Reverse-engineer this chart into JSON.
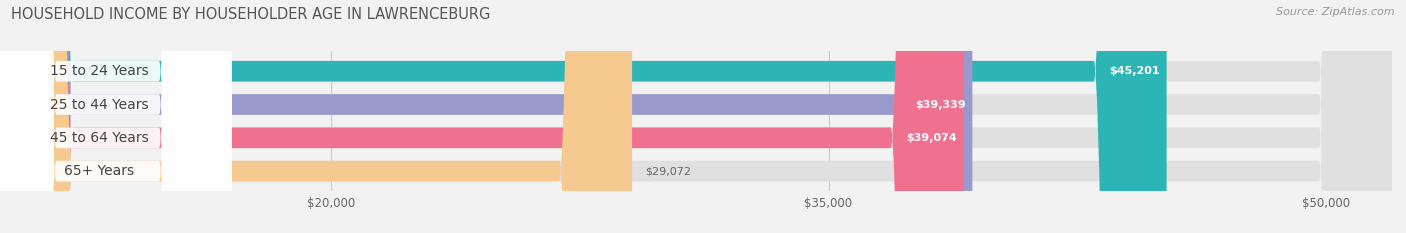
{
  "title": "HOUSEHOLD INCOME BY HOUSEHOLDER AGE IN LAWRENCEBURG",
  "source": "Source: ZipAtlas.com",
  "categories": [
    "15 to 24 Years",
    "25 to 44 Years",
    "45 to 64 Years",
    "65+ Years"
  ],
  "values": [
    45201,
    39339,
    39074,
    29072
  ],
  "bar_colors": [
    "#2db5b5",
    "#9999cc",
    "#f07090",
    "#f5c990"
  ],
  "bar_labels": [
    "$45,201",
    "$39,339",
    "$39,074",
    "$29,072"
  ],
  "label_inside": [
    true,
    true,
    true,
    false
  ],
  "xmin": 10000,
  "xmax": 52000,
  "xlim_left": 10000,
  "xlim_right": 52000,
  "xticks": [
    20000,
    35000,
    50000
  ],
  "xtick_labels": [
    "$20,000",
    "$35,000",
    "$50,000"
  ],
  "background_color": "#f2f2f2",
  "bar_bg_color": "#e0e0e0",
  "label_bg_color": "#ffffff",
  "title_fontsize": 10.5,
  "source_fontsize": 8,
  "bar_label_fontsize": 8,
  "cat_label_fontsize": 10
}
